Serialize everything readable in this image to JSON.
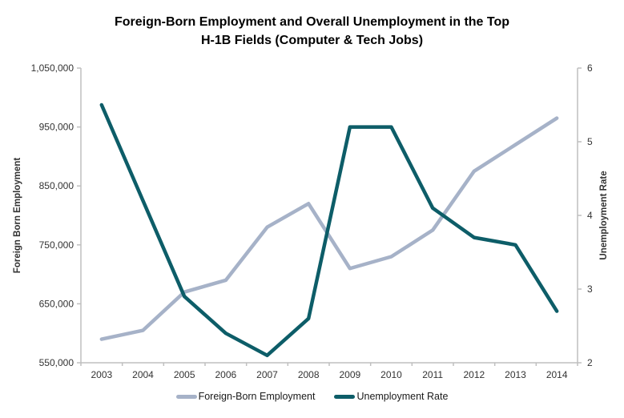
{
  "title": {
    "line1": "Foreign-Born Employment and Overall Unemployment in the Top",
    "line2": "H-1B Fields (Computer & Tech Jobs)"
  },
  "left_axis": {
    "title": "Foreign Born Employment",
    "tick_labels": [
      "1,050,000",
      "950,000",
      "850,000",
      "750,000",
      "650,000",
      "550,000"
    ],
    "tick_values": [
      1050000,
      950000,
      850000,
      750000,
      650000,
      550000
    ]
  },
  "right_axis": {
    "title": "Unemployment Rate",
    "tick_labels": [
      "6",
      "5",
      "4",
      "3",
      "2"
    ],
    "tick_values": [
      6,
      5,
      4,
      3,
      2
    ]
  },
  "x_axis": {
    "categories": [
      "2003",
      "2004",
      "2005",
      "2006",
      "2007",
      "2008",
      "2009",
      "2010",
      "2011",
      "2012",
      "2013",
      "2014"
    ]
  },
  "legend": {
    "items": [
      {
        "label": "Foreign-Born Employment",
        "color": "#a6b2c8"
      },
      {
        "label": "Unemployment Rate",
        "color": "#0d5d68"
      }
    ]
  },
  "colors": {
    "employment_line": "#a6b2c8",
    "unemployment_line": "#0d5d68",
    "axis": "#bfbfbf",
    "tick_text": "#333333"
  },
  "chart_data": {
    "type": "line",
    "x": [
      "2003",
      "2004",
      "2005",
      "2006",
      "2007",
      "2008",
      "2009",
      "2010",
      "2011",
      "2012",
      "2013",
      "2014"
    ],
    "series": [
      {
        "name": "Foreign-Born Employment",
        "axis": "left",
        "color": "#a6b2c8",
        "values": [
          590000,
          605000,
          670000,
          690000,
          780000,
          820000,
          710000,
          730000,
          775000,
          875000,
          920000,
          965000
        ]
      },
      {
        "name": "Unemployment Rate",
        "axis": "right",
        "color": "#0d5d68",
        "values": [
          5.5,
          4.2,
          2.9,
          2.4,
          2.1,
          2.6,
          5.2,
          5.2,
          4.1,
          3.7,
          3.6,
          2.7
        ]
      }
    ],
    "left_ylim": [
      550000,
      1050000
    ],
    "right_ylim": [
      2,
      6
    ],
    "grid": false,
    "legend_position": "bottom",
    "title": "Foreign-Born Employment and Overall Unemployment in the Top H-1B Fields (Computer & Tech Jobs)",
    "left_ylabel": "Foreign Born Employment",
    "right_ylabel": "Unemployment Rate"
  }
}
